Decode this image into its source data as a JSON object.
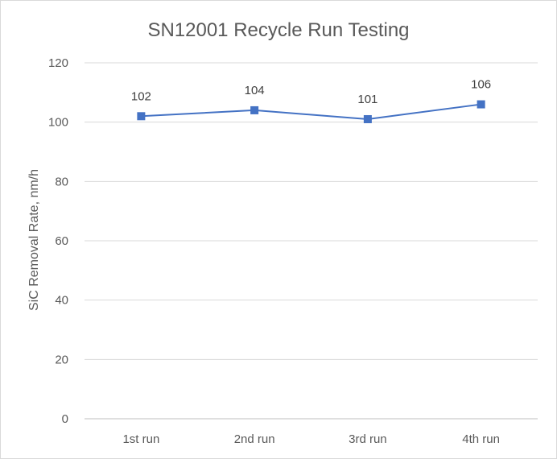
{
  "chart_data": {
    "type": "line",
    "title": "SN12001 Recycle Run Testing",
    "xlabel": "",
    "ylabel": "SiC Removal Rate, nm/h",
    "categories": [
      "1st run",
      "2nd run",
      "3rd run",
      "4th run"
    ],
    "series": [
      {
        "values": [
          102,
          104,
          101,
          106
        ],
        "data_labels": [
          "102",
          "104",
          "101",
          "106"
        ],
        "color": "#4472c4",
        "marker": "square"
      }
    ],
    "ylim": [
      0,
      120
    ],
    "yticks": [
      0,
      20,
      40,
      60,
      80,
      100,
      120
    ],
    "grid": true,
    "legend": "none"
  }
}
